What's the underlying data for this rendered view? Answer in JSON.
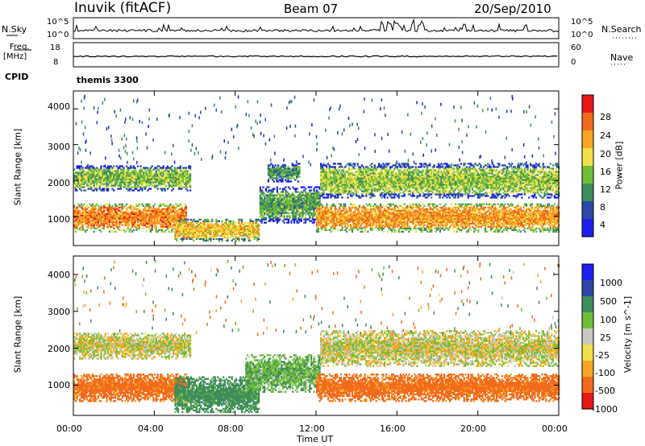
{
  "header": {
    "station": "Inuvik (fitACF)",
    "beam": "Beam 07",
    "date": "20/Sep/2010"
  },
  "strips": {
    "nsky_label": "N.Sky",
    "nsky_ticks": [
      "10^5",
      "10^0"
    ],
    "nsearch_label": "N.Search",
    "nsearch_ticks": [
      "10^5",
      "10^0"
    ],
    "freq_label_1": "Freq.",
    "freq_label_2": "[MHz]",
    "freq_ticks": [
      "18",
      "8"
    ],
    "nave_label": "Nave",
    "nave_ticks": [
      "60",
      "0"
    ],
    "cpid_label": "CPID",
    "cpid_value": "themis 3300"
  },
  "time_axis": {
    "label": "Time UT",
    "ticks": [
      "00:00",
      "04:00",
      "08:00",
      "12:00",
      "16:00",
      "20:00",
      "00:00"
    ]
  },
  "colors": {
    "power_scale": [
      "#1e1ef0",
      "#2a49a8",
      "#3f8c5c",
      "#6fbe3a",
      "#f0e04a",
      "#f5a623",
      "#f26b1d",
      "#e81818"
    ],
    "velocity_scale": [
      "#e81818",
      "#f26b1d",
      "#f5a623",
      "#f0e04a",
      "#c8c8c0",
      "#6fbe3a",
      "#3f8c5c",
      "#2a49a8",
      "#1e1ef0"
    ]
  },
  "chart_data": [
    {
      "type": "heatmap",
      "panel": "power",
      "ylabel": "Slant Range [km]",
      "xlim": [
        0,
        24
      ],
      "ylim": [
        180,
        4500
      ],
      "yticks": [
        "1000",
        "2000",
        "3000",
        "4000"
      ],
      "colorbar_label": "Power [dB]",
      "colorbar_ticks": [
        "4",
        "8",
        "12",
        "16",
        "20",
        "24",
        "28"
      ],
      "bands": [
        {
          "t0": 0.0,
          "t1": 5.6,
          "r0": 550,
          "r1": 1350,
          "value": 26
        },
        {
          "t0": 0.0,
          "t1": 5.8,
          "r0": 1700,
          "r1": 2400,
          "value": 16
        },
        {
          "t0": 5.0,
          "t1": 9.2,
          "r0": 300,
          "r1": 900,
          "value": 22
        },
        {
          "t0": 9.2,
          "t1": 12.2,
          "r0": 800,
          "r1": 1800,
          "value": 14
        },
        {
          "t0": 9.6,
          "t1": 11.2,
          "r0": 1950,
          "r1": 2450,
          "value": 13
        },
        {
          "t0": 12.0,
          "t1": 24.0,
          "r0": 550,
          "r1": 1350,
          "value": 25
        },
        {
          "t0": 12.2,
          "t1": 24.0,
          "r0": 1500,
          "r1": 2450,
          "value": 17
        }
      ]
    },
    {
      "type": "heatmap",
      "panel": "velocity",
      "ylabel": "Slant Range [km]",
      "xlim": [
        0,
        24
      ],
      "ylim": [
        180,
        4500
      ],
      "yticks": [
        "1000",
        "2000",
        "3000",
        "4000"
      ],
      "colorbar_label": "Velocity [m s^-1]",
      "colorbar_ticks": [
        "1000",
        "500",
        "100",
        "25",
        "-25",
        "-100",
        "-500",
        "-1000"
      ],
      "bands": [
        {
          "t0": 0.0,
          "t1": 5.6,
          "r0": 550,
          "r1": 1300,
          "value": -150
        },
        {
          "t0": 0.0,
          "t1": 5.8,
          "r0": 1700,
          "r1": 2400,
          "value": 0
        },
        {
          "t0": 5.0,
          "t1": 9.2,
          "r0": 250,
          "r1": 1200,
          "value": 150
        },
        {
          "t0": 8.5,
          "t1": 12.2,
          "r0": 800,
          "r1": 1800,
          "value": 80
        },
        {
          "t0": 12.0,
          "t1": 24.0,
          "r0": 550,
          "r1": 1300,
          "value": -150
        },
        {
          "t0": 12.2,
          "t1": 24.0,
          "r0": 1500,
          "r1": 2450,
          "value": 0
        }
      ]
    }
  ]
}
